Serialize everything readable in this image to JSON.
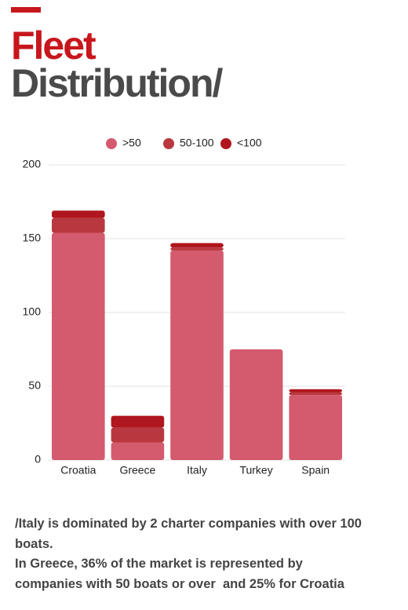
{
  "header": {
    "title_line1": "Fleet",
    "title_line2": "Distribution/"
  },
  "chart_data": {
    "type": "stacked_bar",
    "categories": [
      "Croatia",
      "Greece",
      "Italy",
      "Turkey",
      "Spain"
    ],
    "series": [
      {
        "name": ">50",
        "color": "#d45a6e",
        "values": [
          154,
          12,
          142,
          75,
          44
        ]
      },
      {
        "name": "50-100",
        "color": "#b9383f",
        "values": [
          10,
          10,
          2,
          0,
          2
        ]
      },
      {
        "name": "<100",
        "color": "#b0161e",
        "values": [
          5,
          8,
          3,
          0,
          2
        ]
      }
    ],
    "ylim": [
      0,
      200
    ],
    "yticks": [
      0,
      50,
      100,
      150,
      200
    ],
    "grid": true,
    "legend": "top"
  },
  "footer": {
    "lines": [
      "/Italy is dominated by 2 charter companies with over 100",
      "boats.",
      "In Greece, 36% of the market is represented by",
      "companies with 50 boats or over  and 25% for Croatia"
    ]
  }
}
